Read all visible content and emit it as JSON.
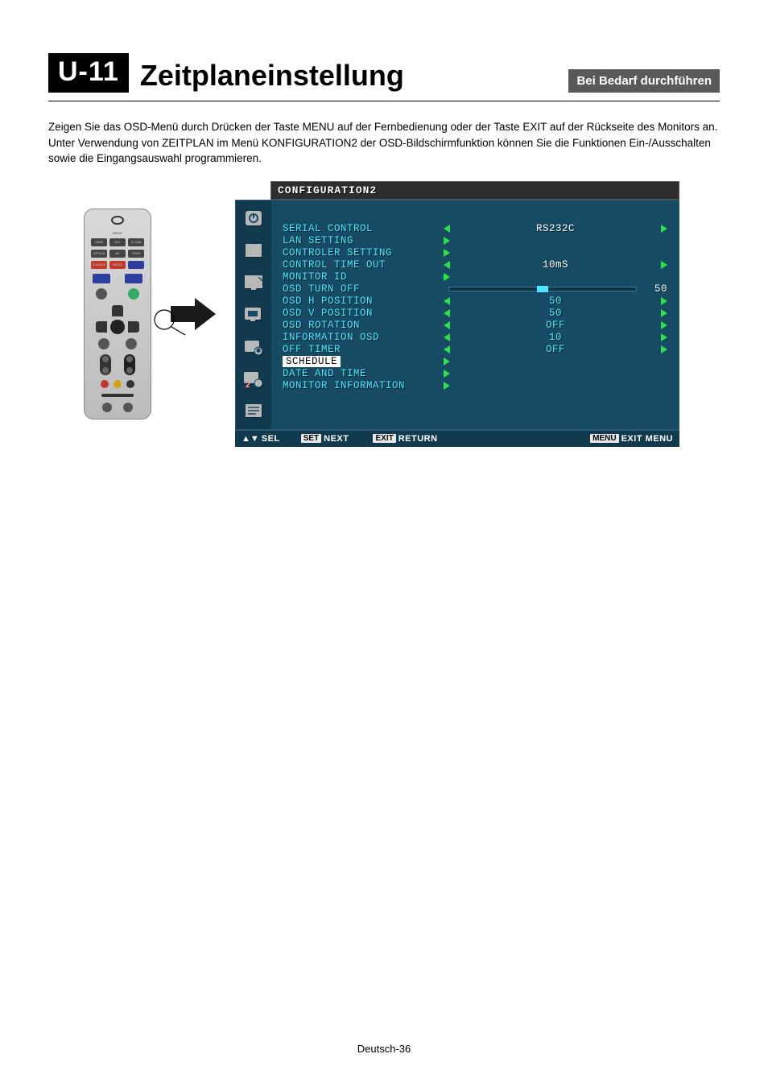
{
  "header": {
    "badge": "U-11",
    "title": "Zeitplaneinstellung",
    "right_badge": "Bei Bedarf durchführen"
  },
  "body_text": "Zeigen Sie das OSD-Menü durch Drücken der Taste MENU auf der Fernbedienung oder der Taste EXIT auf der Rückseite des Monitors an.\nUnter Verwendung von ZEITPLAN im Menü KONFIGURATION2 der OSD-Bildschirmfunktion können Sie die Funktionen Ein-/Ausschalten sowie die Eingangsauswahl programmieren.",
  "osd": {
    "title": "CONFIGURATION2",
    "rows": [
      {
        "label": "SERIAL CONTROL",
        "type": "lr",
        "value": "RS232C",
        "value_white": true
      },
      {
        "label": "LAN SETTING",
        "type": "enter"
      },
      {
        "label": "CONTROLER SETTING",
        "type": "enter"
      },
      {
        "label": "CONTROL TIME OUT",
        "type": "lr",
        "value": "10mS",
        "value_white": true
      },
      {
        "label": "MONITOR ID",
        "type": "enter"
      },
      {
        "label": "OSD TURN OFF",
        "type": "slider",
        "value": "50",
        "slider_pct": 50
      },
      {
        "label": "OSD H POSITION",
        "type": "lr",
        "value": "50"
      },
      {
        "label": "OSD V POSITION",
        "type": "lr",
        "value": "50"
      },
      {
        "label": "OSD ROTATION",
        "type": "lr",
        "value": "OFF"
      },
      {
        "label": "INFORMATION OSD",
        "type": "lr",
        "value": "10"
      },
      {
        "label": "OFF TIMER",
        "type": "lr",
        "value": "OFF"
      },
      {
        "label": "SCHEDULE",
        "type": "enter",
        "selected": true
      },
      {
        "label": "DATE AND TIME",
        "type": "enter"
      },
      {
        "label": "MONITOR INFORMATION",
        "type": "enter"
      }
    ],
    "footer": {
      "sel_keys": "▲▼",
      "sel_lbl": "SEL",
      "next_key": "SET",
      "next_lbl": "NEXT",
      "ret_key": "EXIT",
      "ret_lbl": "RETURN",
      "menu_key": "MENU",
      "menu_lbl": "EXIT MENU"
    },
    "side_icons": [
      "power",
      "rect",
      "screen",
      "screen2",
      "config",
      "reset"
    ],
    "colors": {
      "panel_bg": "#174b63",
      "side_bg": "#113a4e",
      "text": "#4fe6ff",
      "arrow": "#2fe04a",
      "title_bg": "#2e2e2e"
    }
  },
  "footer": "Deutsch-36"
}
